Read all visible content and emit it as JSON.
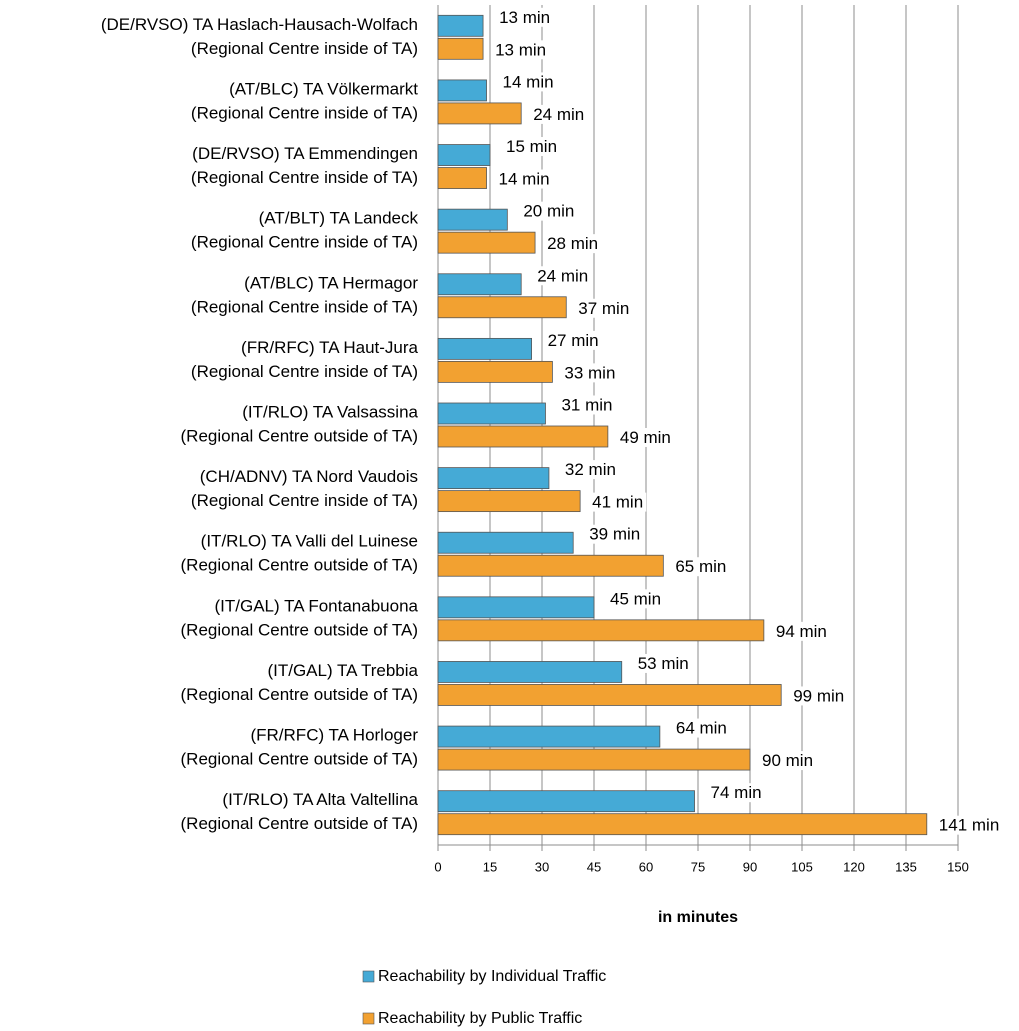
{
  "chart_data": {
    "type": "bar",
    "orientation": "horizontal",
    "categories": [
      [
        "(DE/RVSO) TA Haslach-Hausach-Wolfach",
        "(Regional Centre inside of TA)"
      ],
      [
        "(AT/BLC) TA Völkermarkt",
        "(Regional Centre inside of TA)"
      ],
      [
        "(DE/RVSO) TA Emmendingen",
        "(Regional Centre inside of TA)"
      ],
      [
        "(AT/BLT) TA Landeck",
        "(Regional Centre inside of TA)"
      ],
      [
        "(AT/BLC) TA Hermagor",
        "(Regional Centre inside of TA)"
      ],
      [
        "(FR/RFC) TA Haut-Jura",
        "(Regional Centre inside of TA)"
      ],
      [
        "(IT/RLO) TA Valsassina",
        "(Regional Centre outside of TA)"
      ],
      [
        "(CH/ADNV) TA Nord Vaudois",
        "(Regional Centre inside of TA)"
      ],
      [
        "(IT/RLO) TA Valli del Luinese",
        "(Regional Centre outside of TA)"
      ],
      [
        "(IT/GAL) TA Fontanabuona",
        "(Regional Centre outside of TA)"
      ],
      [
        "(IT/GAL) TA Trebbia",
        "(Regional Centre outside of TA)"
      ],
      [
        "(FR/RFC) TA Horloger",
        "(Regional Centre outside of TA)"
      ],
      [
        "(IT/RLO) TA Alta Valtellina",
        "(Regional Centre outside of TA)"
      ]
    ],
    "series": [
      {
        "name": "Reachability by Individual Traffic",
        "color": "#45aad6",
        "values": [
          13,
          14,
          15,
          20,
          24,
          27,
          31,
          32,
          39,
          45,
          53,
          64,
          74
        ],
        "value_labels": [
          "13 min",
          "14 min",
          "15 min",
          "20 min",
          "24 min",
          "27 min",
          "31 min",
          "32 min",
          "39 min",
          "45 min",
          "53 min",
          "64 min",
          "74 min"
        ]
      },
      {
        "name": "Reachability by Public Traffic",
        "color": "#f2a131",
        "values": [
          13,
          24,
          14,
          28,
          37,
          33,
          49,
          41,
          65,
          94,
          99,
          90,
          141
        ],
        "value_labels": [
          "13 min",
          "24 min",
          "14 min",
          "28 min",
          "37 min",
          "33 min",
          "49 min",
          "41 min",
          "65 min",
          "94 min",
          "99 min",
          "90 min",
          "141 min"
        ]
      }
    ],
    "xlabel": "in minutes",
    "xlim": [
      0,
      150
    ],
    "xticks": [
      0,
      15,
      30,
      45,
      60,
      75,
      90,
      105,
      120,
      135,
      150
    ],
    "grid": true,
    "legend": "bottom"
  }
}
